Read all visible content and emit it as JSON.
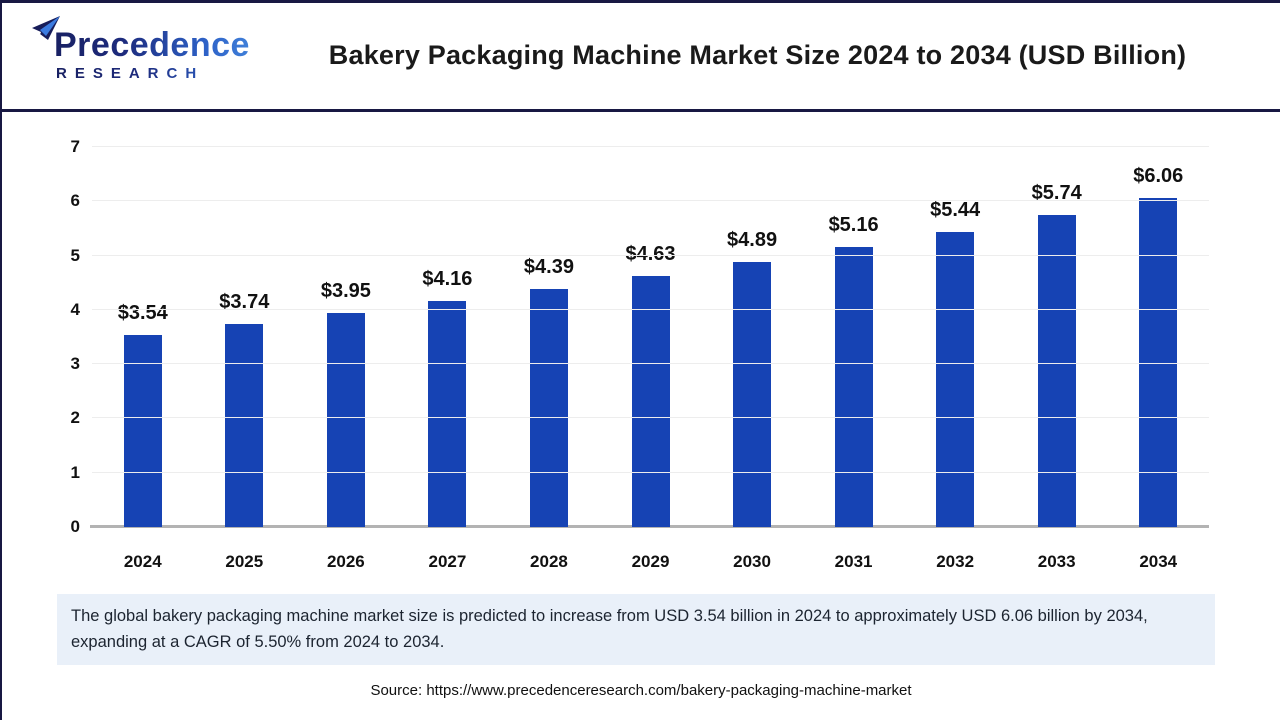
{
  "header": {
    "logo": {
      "line1": "Precedence",
      "line2": "RESEARCH"
    },
    "title": "Bakery Packaging Machine Market Size 2024 to 2034 (USD Billion)"
  },
  "chart_data": {
    "type": "bar",
    "title": "Bakery Packaging Machine Market Size 2024 to 2034 (USD Billion)",
    "categories": [
      "2024",
      "2025",
      "2026",
      "2027",
      "2028",
      "2029",
      "2030",
      "2031",
      "2032",
      "2033",
      "2034"
    ],
    "values": [
      3.54,
      3.74,
      3.95,
      4.16,
      4.39,
      4.63,
      4.89,
      5.16,
      5.44,
      5.74,
      6.06
    ],
    "value_labels": [
      "$3.54",
      "$3.74",
      "$3.95",
      "$4.16",
      "$4.39",
      "$4.63",
      "$4.89",
      "$5.16",
      "$5.44",
      "$5.74",
      "$6.06"
    ],
    "xlabel": "",
    "ylabel": "",
    "ylim": [
      0,
      7
    ],
    "yticks": [
      0,
      1,
      2,
      3,
      4,
      5,
      6,
      7
    ],
    "grid": true,
    "legend": "none",
    "unit": "USD Billion"
  },
  "callout": {
    "text": "The global bakery packaging machine market size is predicted to increase from USD 3.54 billion in 2024 to approximately USD 6.06 billion by 2034, expanding at a CAGR of 5.50% from 2024 to 2034."
  },
  "source": {
    "text": "Source: https://www.precedenceresearch.com/bakery-packaging-machine-market"
  },
  "colors": {
    "bar": "#1643b4",
    "accent_border": "#181843",
    "callout_bg": "#e9f0f9",
    "gridline": "#ededed",
    "baseline": "#b3b3b3"
  }
}
